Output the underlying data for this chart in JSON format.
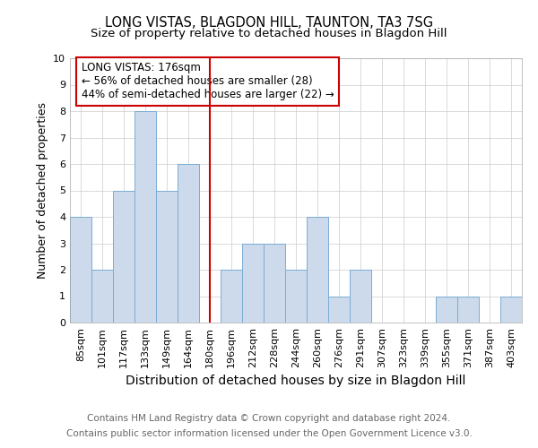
{
  "title": "LONG VISTAS, BLAGDON HILL, TAUNTON, TA3 7SG",
  "subtitle": "Size of property relative to detached houses in Blagdon Hill",
  "xlabel": "Distribution of detached houses by size in Blagdon Hill",
  "ylabel": "Number of detached properties",
  "categories": [
    "85sqm",
    "101sqm",
    "117sqm",
    "133sqm",
    "149sqm",
    "164sqm",
    "180sqm",
    "196sqm",
    "212sqm",
    "228sqm",
    "244sqm",
    "260sqm",
    "276sqm",
    "291sqm",
    "307sqm",
    "323sqm",
    "339sqm",
    "355sqm",
    "371sqm",
    "387sqm",
    "403sqm"
  ],
  "values": [
    4,
    2,
    5,
    8,
    5,
    6,
    0,
    2,
    3,
    3,
    2,
    4,
    1,
    2,
    0,
    0,
    0,
    1,
    1,
    0,
    1
  ],
  "bar_color": "#ccdaec",
  "bar_edge_color": "#7aacd4",
  "bar_linewidth": 0.7,
  "vline_x_index": 6,
  "vline_color": "#cc0000",
  "annotation_title": "LONG VISTAS: 176sqm",
  "annotation_line1": "← 56% of detached houses are smaller (28)",
  "annotation_line2": "44% of semi-detached houses are larger (22) →",
  "annotation_box_color": "#cc0000",
  "ylim": [
    0,
    10
  ],
  "yticks": [
    0,
    1,
    2,
    3,
    4,
    5,
    6,
    7,
    8,
    9,
    10
  ],
  "grid_color": "#cccccc",
  "bg_color": "#ffffff",
  "footnote1": "Contains HM Land Registry data © Crown copyright and database right 2024.",
  "footnote2": "Contains public sector information licensed under the Open Government Licence v3.0.",
  "title_fontsize": 10.5,
  "subtitle_fontsize": 9.5,
  "xlabel_fontsize": 10,
  "ylabel_fontsize": 9,
  "tick_fontsize": 8,
  "annotation_fontsize": 8.5,
  "footnote_fontsize": 7.5
}
